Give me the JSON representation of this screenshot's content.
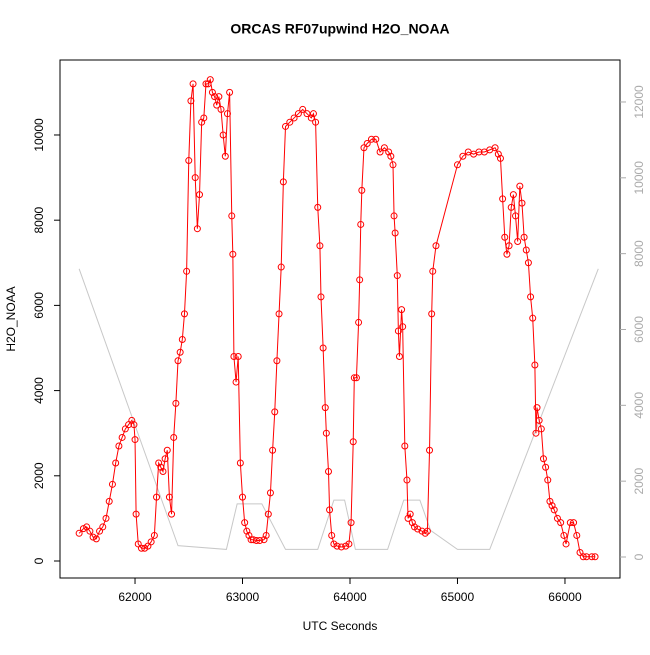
{
  "chart_data": {
    "type": "line",
    "title": "ORCAS RF07upwind H2O_NOAA",
    "xlabel": "UTC Seconds",
    "ylabel": "H2O_NOAA",
    "xlim": [
      61302,
      66512
    ],
    "xticks": [
      62000,
      63000,
      64000,
      65000,
      66000
    ],
    "ylim": [
      -399,
      11760
    ],
    "yticks": [
      0,
      2000,
      4000,
      6000,
      8000,
      10000
    ],
    "y2lim": [
      -554,
      13107
    ],
    "y2ticks": [
      0,
      2000,
      4000,
      6000,
      8000,
      10000,
      12000
    ],
    "series": [
      {
        "color": "#ff0000",
        "marker": "circle",
        "axis": "y",
        "x": [
          61480,
          61520,
          61550,
          61580,
          61610,
          61640,
          61670,
          61700,
          61730,
          61760,
          61790,
          61820,
          61850,
          61880,
          61910,
          61940,
          61970,
          61990,
          62000,
          62010,
          62030,
          62060,
          62090,
          62120,
          62150,
          62180,
          62200,
          62220,
          62240,
          62260,
          62280,
          62300,
          62320,
          62340,
          62360,
          62380,
          62400,
          62420,
          62440,
          62460,
          62480,
          62500,
          62520,
          62540,
          62560,
          62580,
          62600,
          62620,
          62640,
          62660,
          62680,
          62700,
          62720,
          62740,
          62760,
          62780,
          62800,
          62820,
          62840,
          62860,
          62880,
          62900,
          62910,
          62920,
          62940,
          62960,
          62980,
          63000,
          63020,
          63040,
          63060,
          63080,
          63100,
          63130,
          63160,
          63200,
          63220,
          63240,
          63260,
          63280,
          63300,
          63320,
          63340,
          63360,
          63380,
          63400,
          63440,
          63480,
          63520,
          63560,
          63600,
          63640,
          63660,
          63680,
          63700,
          63720,
          63730,
          63750,
          63770,
          63780,
          63800,
          63810,
          63830,
          63850,
          63880,
          63920,
          63960,
          63990,
          64010,
          64030,
          64040,
          64060,
          64080,
          64090,
          64100,
          64110,
          64130,
          64160,
          64200,
          64240,
          64280,
          64320,
          64360,
          64380,
          64400,
          64410,
          64420,
          64440,
          64450,
          64460,
          64480,
          64490,
          64510,
          64530,
          64540,
          64560,
          64580,
          64600,
          64630,
          64670,
          64700,
          64720,
          64740,
          64760,
          64770,
          64800,
          65000,
          65050,
          65100,
          65150,
          65200,
          65250,
          65300,
          65350,
          65380,
          65400,
          65420,
          65440,
          65460,
          65480,
          65500,
          65520,
          65540,
          65560,
          65580,
          65600,
          65620,
          65640,
          65660,
          65680,
          65700,
          65720,
          65730,
          65740,
          65760,
          65780,
          65800,
          65820,
          65840,
          65860,
          65880,
          65900,
          65930,
          65960,
          65990,
          66010,
          66050,
          66080,
          66110,
          66140,
          66170,
          66200,
          66250,
          66280
        ],
        "values": [
          650,
          760,
          800,
          700,
          560,
          520,
          700,
          800,
          1000,
          1400,
          1800,
          2300,
          2700,
          2900,
          3100,
          3200,
          3300,
          3200,
          2850,
          1100,
          400,
          300,
          300,
          350,
          450,
          600,
          1500,
          2300,
          2200,
          2100,
          2400,
          2600,
          1500,
          1100,
          2900,
          3700,
          4700,
          4900,
          5200,
          5800,
          6800,
          9400,
          10800,
          11200,
          9000,
          7800,
          8600,
          10300,
          10400,
          11200,
          11200,
          11300,
          11000,
          10900,
          10700,
          10900,
          10600,
          10000,
          9500,
          10500,
          11000,
          8100,
          7200,
          4800,
          4200,
          4800,
          2300,
          1500,
          900,
          700,
          600,
          500,
          500,
          480,
          480,
          500,
          600,
          1100,
          1600,
          2600,
          3500,
          4700,
          5800,
          6900,
          8900,
          10200,
          10300,
          10400,
          10500,
          10600,
          10500,
          10400,
          10500,
          10300,
          8300,
          7400,
          6200,
          5000,
          3600,
          3000,
          2100,
          1200,
          600,
          400,
          350,
          330,
          350,
          400,
          900,
          2800,
          4300,
          4300,
          5600,
          6600,
          7900,
          8700,
          9700,
          9800,
          9900,
          9900,
          9600,
          9700,
          9600,
          9500,
          9300,
          8100,
          7700,
          6700,
          5400,
          4800,
          5900,
          5500,
          2700,
          1900,
          1000,
          1100,
          900,
          800,
          750,
          700,
          650,
          700,
          2600,
          5800,
          6800,
          7400,
          9300,
          9500,
          9600,
          9550,
          9600,
          9600,
          9650,
          9700,
          9550,
          9450,
          8500,
          7600,
          7200,
          7400,
          8300,
          8600,
          8100,
          7500,
          8800,
          8400,
          7600,
          7300,
          7000,
          6200,
          5700,
          4600,
          3000,
          3600,
          3300,
          3100,
          2400,
          2200,
          1900,
          1400,
          1300,
          1200,
          1000,
          900,
          600,
          400,
          900,
          900,
          600,
          200,
          100,
          100,
          100,
          100
        ]
      },
      {
        "color": "#c8c8c8",
        "axis": "y2",
        "x": [
          61480,
          62400,
          62850,
          62950,
          63180,
          63400,
          63700,
          63850,
          63950,
          64050,
          64350,
          64500,
          64650,
          64750,
          65000,
          65300,
          66310
        ],
        "values": [
          7600,
          300,
          200,
          1400,
          1400,
          200,
          200,
          1500,
          1500,
          200,
          200,
          1500,
          1500,
          700,
          200,
          200,
          7600
        ]
      }
    ]
  }
}
